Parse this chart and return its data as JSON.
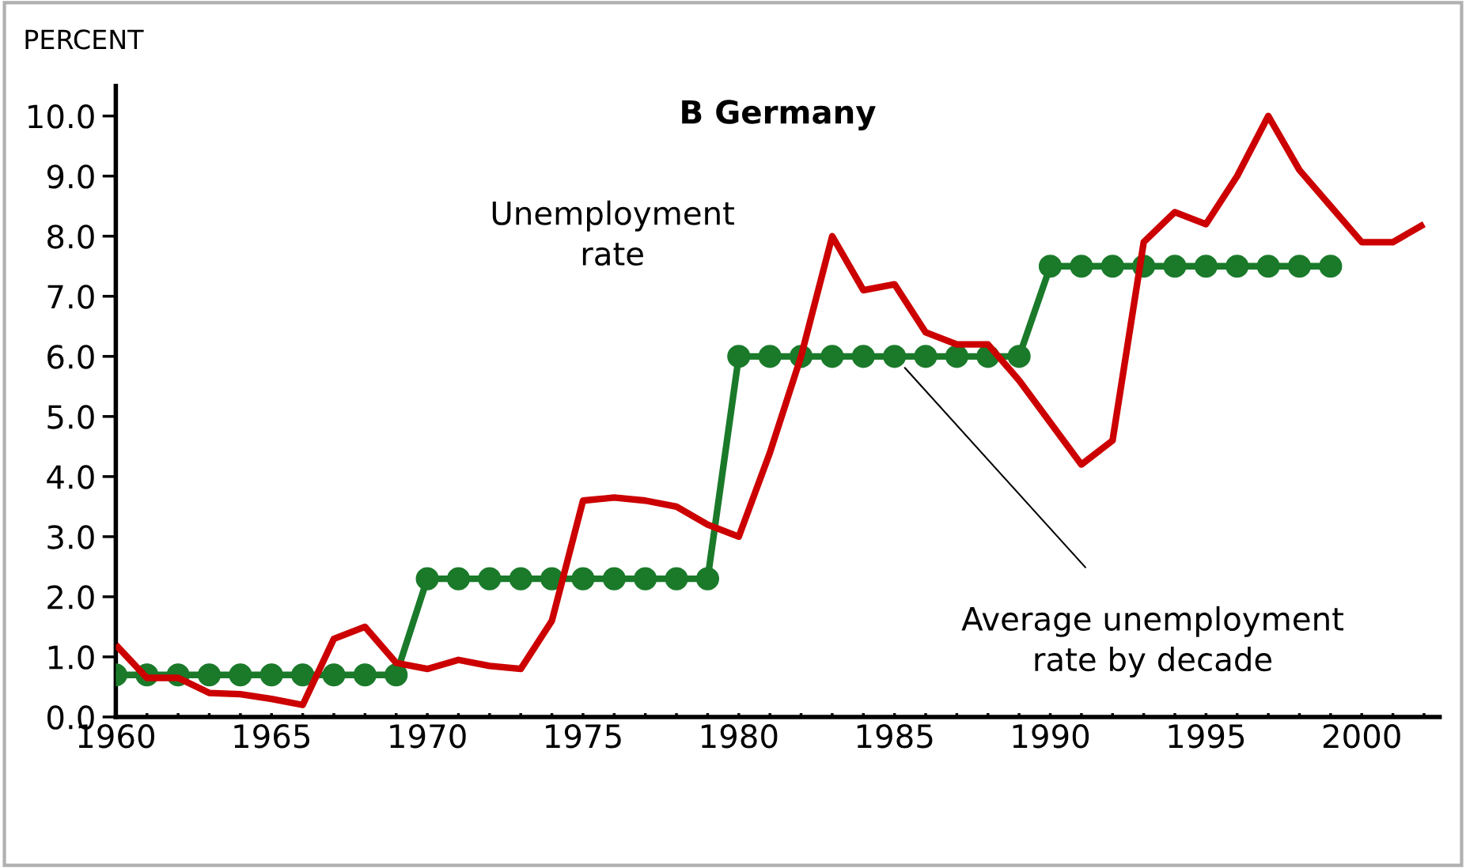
{
  "chart_data": {
    "type": "line",
    "title": "B Germany",
    "ylabel": "PERCENT",
    "x": [
      1960,
      1961,
      1962,
      1963,
      1964,
      1965,
      1966,
      1967,
      1968,
      1969,
      1970,
      1971,
      1972,
      1973,
      1974,
      1975,
      1976,
      1977,
      1978,
      1979,
      1980,
      1981,
      1982,
      1983,
      1984,
      1985,
      1986,
      1987,
      1988,
      1989,
      1990,
      1991,
      1992,
      1993,
      1994,
      1995,
      1996,
      1997,
      1998,
      1999,
      2000,
      2001,
      2002
    ],
    "series": [
      {
        "name": "Unemployment rate",
        "color": "#cc0000",
        "marker": "none",
        "values": [
          1.2,
          0.65,
          0.65,
          0.4,
          0.38,
          0.3,
          0.2,
          1.3,
          1.5,
          0.9,
          0.8,
          0.95,
          0.85,
          0.8,
          1.6,
          3.6,
          3.65,
          3.6,
          3.5,
          3.2,
          3.0,
          4.4,
          6.0,
          8.0,
          7.1,
          7.2,
          6.4,
          6.2,
          6.2,
          5.6,
          4.9,
          4.2,
          4.6,
          7.9,
          8.4,
          8.2,
          9.0,
          10.0,
          9.1,
          8.5,
          7.9,
          7.9,
          8.2
        ]
      },
      {
        "name": "Average unemployment rate by decade",
        "color": "#1a7a2a",
        "marker": "circle",
        "x": [
          1960,
          1961,
          1962,
          1963,
          1964,
          1965,
          1966,
          1967,
          1968,
          1969,
          1970,
          1971,
          1972,
          1973,
          1974,
          1975,
          1976,
          1977,
          1978,
          1979,
          1980,
          1981,
          1982,
          1983,
          1984,
          1985,
          1986,
          1987,
          1988,
          1989,
          1990,
          1991,
          1992,
          1993,
          1994,
          1995,
          1996,
          1997,
          1998,
          1999
        ],
        "values": [
          0.7,
          0.7,
          0.7,
          0.7,
          0.7,
          0.7,
          0.7,
          0.7,
          0.7,
          0.7,
          2.3,
          2.3,
          2.3,
          2.3,
          2.3,
          2.3,
          2.3,
          2.3,
          2.3,
          2.3,
          6.0,
          6.0,
          6.0,
          6.0,
          6.0,
          6.0,
          6.0,
          6.0,
          6.0,
          6.0,
          7.5,
          7.5,
          7.5,
          7.5,
          7.5,
          7.5,
          7.5,
          7.5,
          7.5,
          7.5
        ]
      }
    ],
    "xlim": [
      1960,
      2002.5
    ],
    "ylim": [
      0,
      10.5
    ],
    "xticks": [
      1960,
      {
        "value": 1961,
        "label": null
      },
      {
        "value": 1962,
        "label": null
      },
      {
        "value": 1963,
        "label": null
      },
      {
        "value": 1964,
        "label": null
      },
      1965,
      {
        "value": 1966,
        "label": null
      },
      {
        "value": 1967,
        "label": null
      },
      {
        "value": 1968,
        "label": null
      },
      {
        "value": 1969,
        "label": null
      },
      1970,
      {
        "value": 1971,
        "label": null
      },
      {
        "value": 1972,
        "label": null
      },
      {
        "value": 1973,
        "label": null
      },
      {
        "value": 1974,
        "label": null
      },
      1975,
      {
        "value": 1976,
        "label": null
      },
      {
        "value": 1977,
        "label": null
      },
      {
        "value": 1978,
        "label": null
      },
      {
        "value": 1979,
        "label": null
      },
      1980,
      {
        "value": 1981,
        "label": null
      },
      {
        "value": 1982,
        "label": null
      },
      {
        "value": 1983,
        "label": null
      },
      {
        "value": 1984,
        "label": null
      },
      1985,
      {
        "value": 1986,
        "label": null
      },
      {
        "value": 1987,
        "label": null
      },
      {
        "value": 1988,
        "label": null
      },
      {
        "value": 1989,
        "label": null
      },
      1990,
      {
        "value": 1991,
        "label": null
      },
      {
        "value": 1992,
        "label": null
      },
      {
        "value": 1993,
        "label": null
      },
      {
        "value": 1994,
        "label": null
      },
      1995,
      {
        "value": 1996,
        "label": null
      },
      {
        "value": 1997,
        "label": null
      },
      {
        "value": 1998,
        "label": null
      },
      {
        "value": 1999,
        "label": null
      },
      2000,
      {
        "value": 2001,
        "label": null
      },
      {
        "value": 2002,
        "label": null
      }
    ],
    "yticks": [
      {
        "value": 0,
        "label": "0.0"
      },
      {
        "value": 1,
        "label": "1.0"
      },
      {
        "value": 2,
        "label": "2.0"
      },
      {
        "value": 3,
        "label": "3.0"
      },
      {
        "value": 4,
        "label": "4.0"
      },
      {
        "value": 5,
        "label": "5.0"
      },
      {
        "value": 6,
        "label": "6.0"
      },
      {
        "value": 7,
        "label": "7.0"
      },
      {
        "value": 8,
        "label": "8.0"
      },
      {
        "value": 9,
        "label": "9.0"
      },
      {
        "value": 10,
        "label": "10.0"
      }
    ],
    "grid": false,
    "legend": false
  }
}
